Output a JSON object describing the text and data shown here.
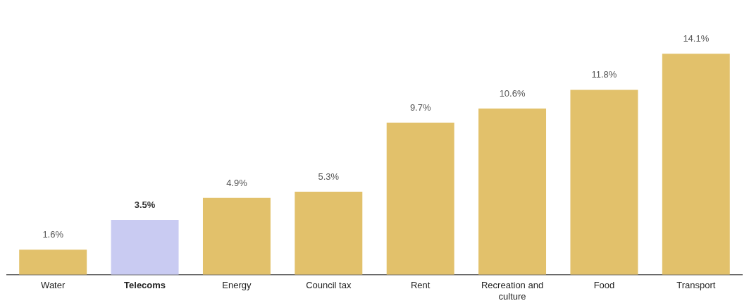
{
  "chart_data": {
    "type": "bar",
    "categories": [
      "Water",
      "Telecoms",
      "Energy",
      "Council tax",
      "Rent",
      "Recreation and culture",
      "Food",
      "Transport"
    ],
    "values": [
      1.6,
      3.5,
      4.9,
      5.3,
      9.7,
      10.6,
      11.8,
      14.1
    ],
    "colors": [
      "#e2c16b",
      "#c9cbf2",
      "#e2c16b",
      "#e2c16b",
      "#e2c16b",
      "#e2c16b",
      "#e2c16b",
      "#e2c16b"
    ],
    "value_labels": [
      "1.6%",
      "3.5%",
      "4.9%",
      "5.3%",
      "9.7%",
      "10.6%",
      "11.8%",
      "14.1%"
    ],
    "tick_labels": "x",
    "grid": false,
    "legend": false
  }
}
